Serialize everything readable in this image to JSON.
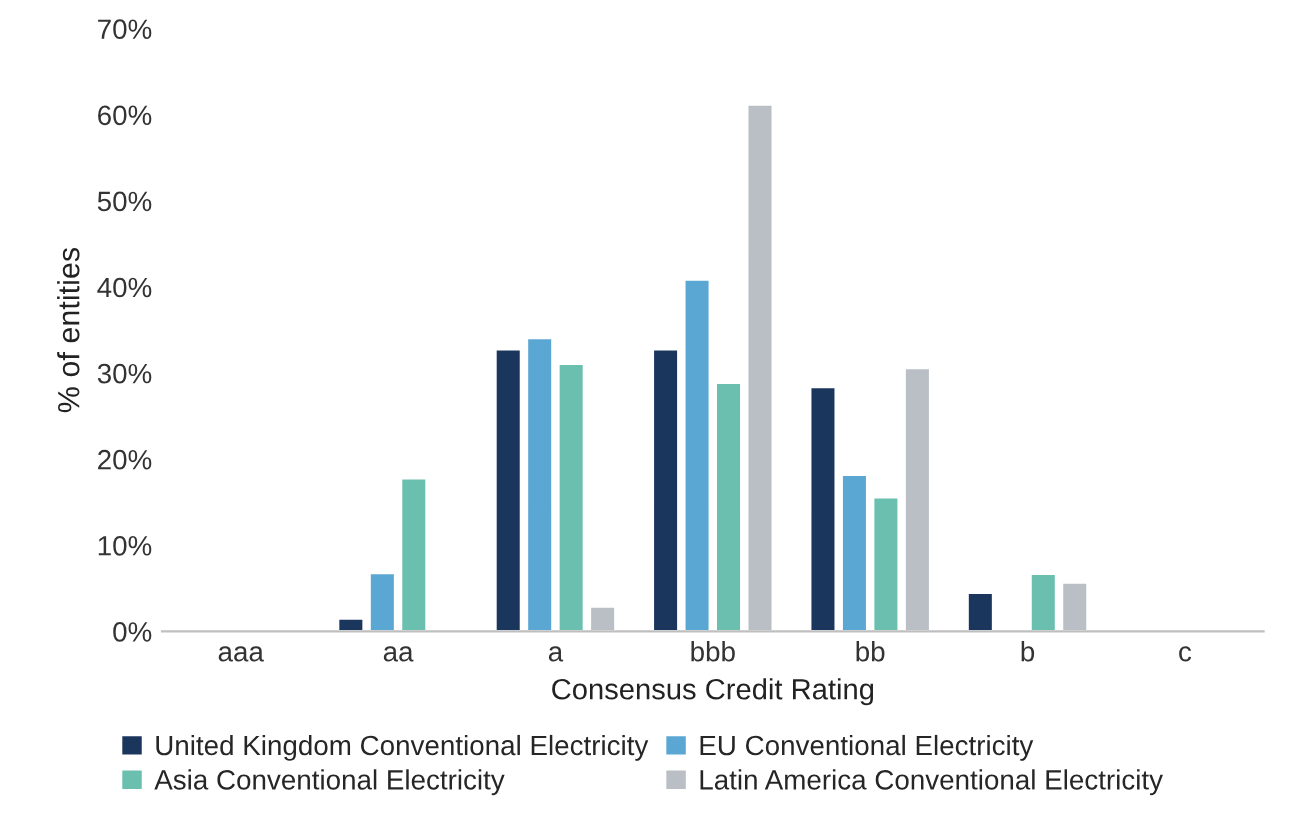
{
  "chart_data": {
    "type": "bar",
    "xlabel": "Consensus Credit Rating",
    "ylabel": "% of entities",
    "categories": [
      "aaa",
      "aa",
      "a",
      "bbb",
      "bb",
      "b",
      "c"
    ],
    "series": [
      {
        "name": "United Kingdom Conventional Electricity",
        "color": "#1b365d",
        "values": [
          null,
          1.5,
          32.8,
          32.8,
          28.4,
          4.5,
          null
        ]
      },
      {
        "name": "EU Conventional Electricity",
        "color": "#5ba7d3",
        "values": [
          null,
          6.8,
          34.1,
          40.9,
          18.2,
          null,
          null
        ]
      },
      {
        "name": "Asia Conventional Electricity",
        "color": "#6bbfaf",
        "values": [
          null,
          17.8,
          31.1,
          28.9,
          15.6,
          6.7,
          null
        ]
      },
      {
        "name": "Latin America Conventional Electricity",
        "color": "#b9bfc5",
        "values": [
          null,
          null,
          2.9,
          61.2,
          30.6,
          5.7,
          null
        ]
      }
    ],
    "ylim": [
      0,
      70
    ],
    "yticks": [
      {
        "value": 0,
        "label": "0%"
      },
      {
        "value": 10,
        "label": "10%"
      },
      {
        "value": 20,
        "label": "20%"
      },
      {
        "value": 30,
        "label": "30%"
      },
      {
        "value": 40,
        "label": "40%"
      },
      {
        "value": 50,
        "label": "50%"
      },
      {
        "value": 60,
        "label": "60%"
      },
      {
        "value": 70,
        "label": "70%"
      }
    ],
    "grid": false,
    "legend": "bottom"
  }
}
